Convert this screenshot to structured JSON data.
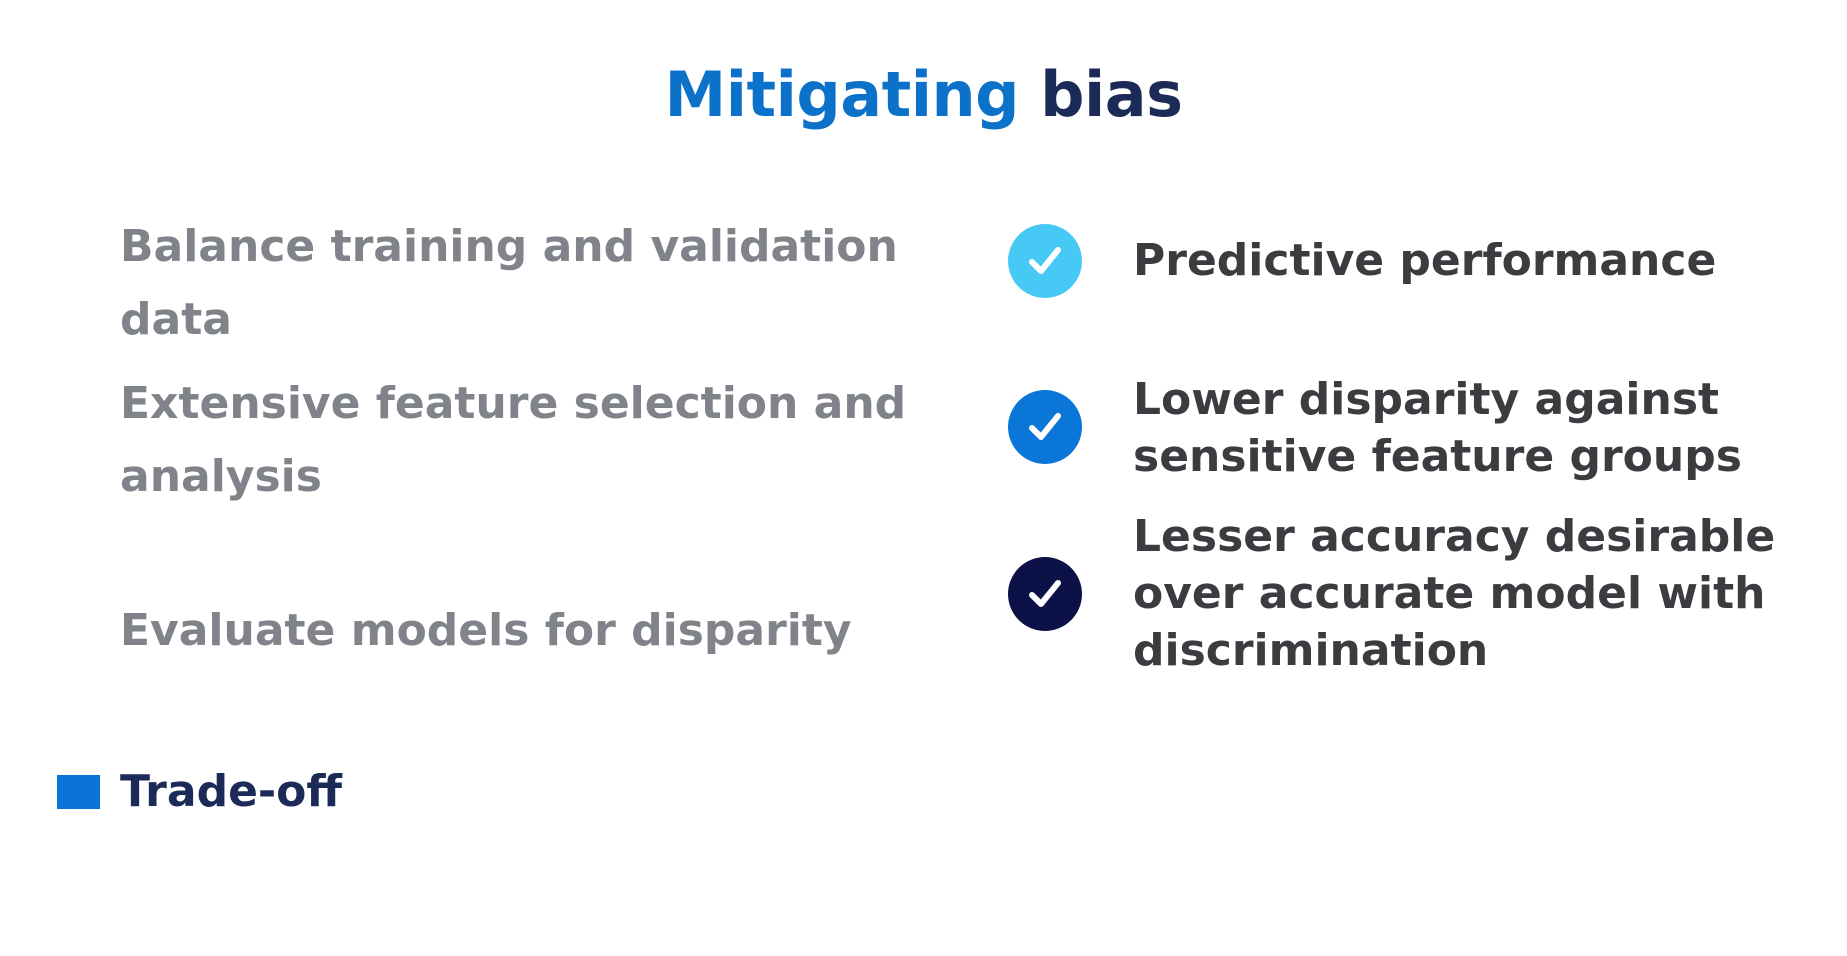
{
  "title": {
    "accent": "Mitigating",
    "rest": "bias"
  },
  "left_items": [
    "Balance training and validation data",
    "Extensive feature selection and analysis",
    "Evaluate models for disparity"
  ],
  "tradeoff": {
    "label": "Trade-off",
    "color": "#0b74d6"
  },
  "right_items": [
    {
      "text": "Predictive performance",
      "icon": "check-circle-icon",
      "color": "#46c9f4"
    },
    {
      "text": "Lower disparity against sensitive feature groups",
      "icon": "check-circle-icon",
      "color": "#0a76d8"
    },
    {
      "text": "Lesser accuracy desirable over accurate model with discrimination",
      "icon": "check-circle-icon",
      "color": "#0b1047"
    }
  ],
  "colors": {
    "title_accent": "#0b71c9",
    "title_dark": "#1b2a57",
    "left_text": "#80848a",
    "right_text": "#3a3c40"
  }
}
